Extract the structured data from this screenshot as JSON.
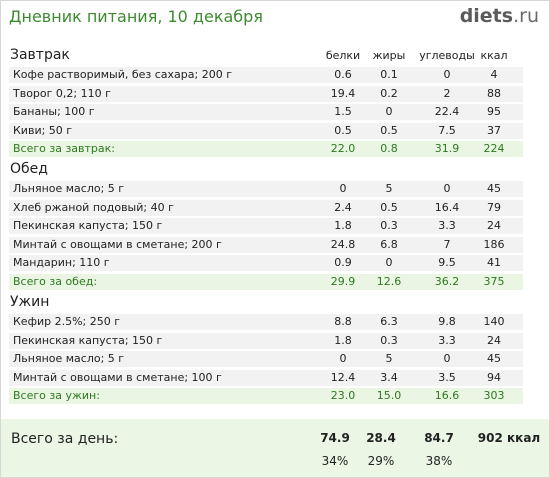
{
  "header": {
    "title": "Дневник питания, 10 декабря",
    "logo_main": "diets",
    "logo_suffix": ".ru"
  },
  "columns": [
    "белки",
    "жиры",
    "углеводы",
    "ккал"
  ],
  "sections": [
    {
      "title": "Завтрак",
      "items": [
        {
          "name": "Кофе растворимый, без сахара; 200 г",
          "values": [
            "0.6",
            "0.1",
            "0",
            "4"
          ]
        },
        {
          "name": "Творог 0,2; 110 г",
          "values": [
            "19.4",
            "0.2",
            "2",
            "88"
          ]
        },
        {
          "name": "Бананы; 100 г",
          "values": [
            "1.5",
            "0",
            "22.4",
            "95"
          ]
        },
        {
          "name": "Киви; 50 г",
          "values": [
            "0.5",
            "0.5",
            "7.5",
            "37"
          ]
        }
      ],
      "total": {
        "label": "Всего за завтрак:",
        "values": [
          "22.0",
          "0.8",
          "31.9",
          "224"
        ]
      }
    },
    {
      "title": "Обед",
      "items": [
        {
          "name": "Льняное масло; 5 г",
          "values": [
            "0",
            "5",
            "0",
            "45"
          ]
        },
        {
          "name": "Хлеб ржаной подовый; 40 г",
          "values": [
            "2.4",
            "0.5",
            "16.4",
            "79"
          ]
        },
        {
          "name": "Пекинская капуста; 150 г",
          "values": [
            "1.8",
            "0.3",
            "3.3",
            "24"
          ]
        },
        {
          "name": "Минтай с овощами в сметане; 200 г",
          "values": [
            "24.8",
            "6.8",
            "7",
            "186"
          ]
        },
        {
          "name": "Мандарин; 110 г",
          "values": [
            "0.9",
            "0",
            "9.5",
            "41"
          ]
        }
      ],
      "total": {
        "label": "Всего за обед:",
        "values": [
          "29.9",
          "12.6",
          "36.2",
          "375"
        ]
      }
    },
    {
      "title": "Ужин",
      "items": [
        {
          "name": "Кефир 2.5%; 250 г",
          "values": [
            "8.8",
            "6.3",
            "9.8",
            "140"
          ]
        },
        {
          "name": "Пекинская капуста; 150 г",
          "values": [
            "1.8",
            "0.3",
            "3.3",
            "24"
          ]
        },
        {
          "name": "Льняное масло; 5 г",
          "values": [
            "0",
            "5",
            "0",
            "45"
          ]
        },
        {
          "name": "Минтай с овощами в сметане; 100 г",
          "values": [
            "12.4",
            "3.4",
            "3.5",
            "94"
          ]
        }
      ],
      "total": {
        "label": "Всего за ужин:",
        "values": [
          "23.0",
          "15.0",
          "16.6",
          "303"
        ]
      }
    }
  ],
  "day_total": {
    "label": "Всего за день:",
    "values": [
      "74.9",
      "28.4",
      "84.7",
      "902 ккал"
    ],
    "percents": [
      "34%",
      "29%",
      "38%"
    ]
  },
  "colors": {
    "title_green": "#3e8a2f",
    "total_green": "#2c7a1f",
    "row_bg": "#f2f2f2",
    "total_bg": "#eaf5e3"
  }
}
